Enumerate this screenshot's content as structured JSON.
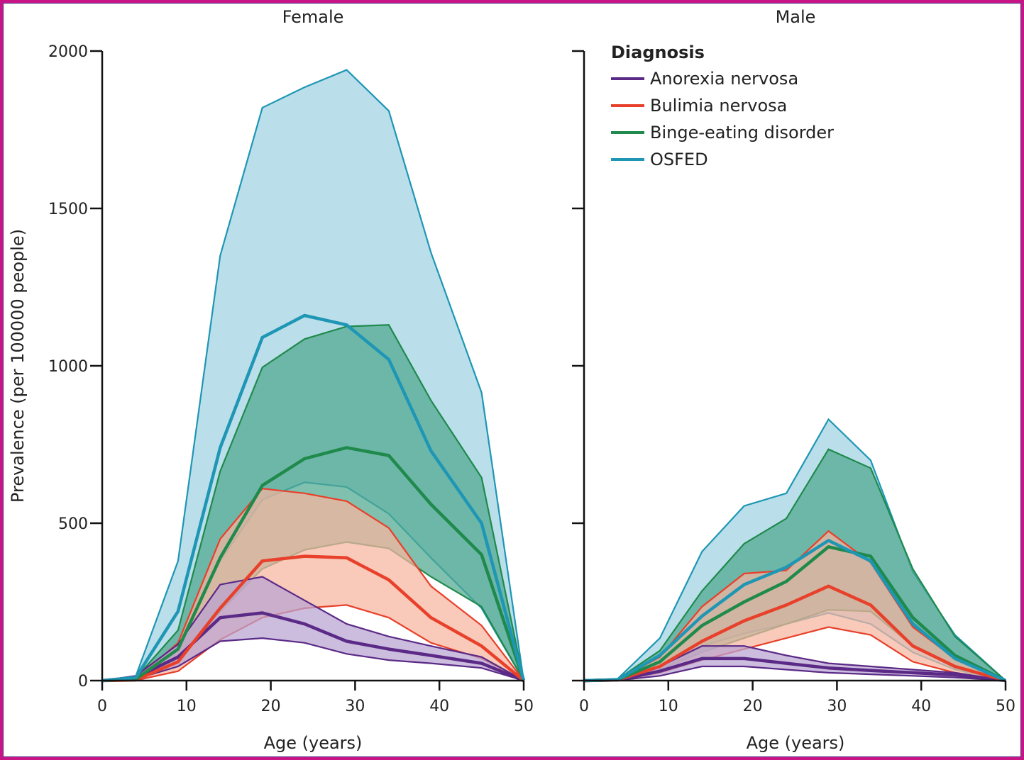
{
  "chart_data": {
    "type": "area",
    "ylabel": "Prevalence (per 100000 people)",
    "xlabel": "Age (years)",
    "xlim": [
      0,
      50
    ],
    "ylim": [
      0,
      2000
    ],
    "xticks": [
      0,
      10,
      20,
      30,
      40,
      50
    ],
    "yticks": [
      0,
      500,
      1000,
      1500,
      2000
    ],
    "grid": false,
    "colors": {
      "Anorexia nervosa": "#5b2a86",
      "Bulimia nervosa": "#e8402a",
      "Binge-eating disorder": "#1f8a4c",
      "OSFED": "#1e96b4"
    },
    "fills": {
      "Anorexia nervosa": "#b9a3d3",
      "Bulimia nervosa": "#f6b49f",
      "Binge-eating disorder": "#4fa88f",
      "OSFED": "#9fd3e3"
    },
    "legend": {
      "title": "Diagnosis",
      "placement": "top-left of Male panel",
      "items": [
        "Anorexia nervosa",
        "Bulimia nervosa",
        "Binge-eating disorder",
        "OSFED"
      ]
    },
    "panels": [
      {
        "title": "Female",
        "series": [
          {
            "name": "OSFED",
            "x": [
              0,
              4,
              9,
              14,
              19,
              24,
              29,
              34,
              39,
              45,
              50
            ],
            "mean": [
              0,
              10,
              220,
              740,
              1090,
              1160,
              1130,
              1020,
              730,
              500,
              0
            ],
            "lower": [
              0,
              5,
              110,
              380,
              575,
              630,
              615,
              530,
              390,
              230,
              0
            ],
            "upper": [
              0,
              15,
              380,
              1350,
              1820,
              1885,
              1940,
              1810,
              1360,
              915,
              0
            ]
          },
          {
            "name": "Binge-eating disorder",
            "x": [
              0,
              4,
              9,
              14,
              19,
              24,
              29,
              34,
              39,
              45,
              50
            ],
            "mean": [
              0,
              5,
              100,
              390,
              620,
              705,
              740,
              715,
              560,
              400,
              0
            ],
            "lower": [
              0,
              2,
              60,
              220,
              355,
              415,
              440,
              420,
              330,
              235,
              0
            ],
            "upper": [
              0,
              8,
              160,
              665,
              995,
              1085,
              1125,
              1130,
              890,
              645,
              0
            ]
          },
          {
            "name": "Bulimia nervosa",
            "x": [
              0,
              4,
              9,
              14,
              19,
              24,
              29,
              34,
              39,
              45,
              50
            ],
            "mean": [
              0,
              2,
              60,
              230,
              380,
              395,
              390,
              320,
              200,
              110,
              0
            ],
            "lower": [
              0,
              1,
              30,
              130,
              200,
              230,
              240,
              200,
              120,
              70,
              0
            ],
            "upper": [
              0,
              4,
              120,
              450,
              610,
              595,
              570,
              485,
              300,
              175,
              0
            ]
          },
          {
            "name": "Anorexia nervosa",
            "x": [
              0,
              4,
              9,
              14,
              19,
              24,
              29,
              34,
              39,
              45,
              50
            ],
            "mean": [
              0,
              10,
              75,
              200,
              215,
              180,
              125,
              100,
              80,
              55,
              0
            ],
            "lower": [
              0,
              5,
              45,
              125,
              135,
              120,
              85,
              65,
              55,
              40,
              0
            ],
            "upper": [
              0,
              15,
              115,
              305,
              330,
              255,
              180,
              140,
              110,
              75,
              0
            ]
          }
        ]
      },
      {
        "title": "Male",
        "series": [
          {
            "name": "OSFED",
            "x": [
              0,
              4,
              9,
              14,
              19,
              24,
              29,
              34,
              39,
              44,
              50
            ],
            "mean": [
              0,
              3,
              80,
              205,
              305,
              360,
              445,
              380,
              180,
              70,
              0
            ],
            "lower": [
              0,
              1,
              45,
              110,
              150,
              180,
              215,
              180,
              90,
              35,
              0
            ],
            "upper": [
              0,
              6,
              135,
              410,
              555,
              595,
              830,
              700,
              345,
              145,
              0
            ]
          },
          {
            "name": "Binge-eating disorder",
            "x": [
              0,
              4,
              9,
              14,
              19,
              24,
              29,
              34,
              39,
              44,
              50
            ],
            "mean": [
              0,
              3,
              60,
              175,
              250,
              315,
              425,
              395,
              200,
              80,
              0
            ],
            "lower": [
              0,
              1,
              35,
              90,
              135,
              180,
              225,
              220,
              110,
              40,
              0
            ],
            "upper": [
              0,
              5,
              95,
              285,
              435,
              515,
              735,
              675,
              355,
              140,
              0
            ]
          },
          {
            "name": "Bulimia nervosa",
            "x": [
              0,
              4,
              9,
              14,
              19,
              24,
              29,
              34,
              39,
              44,
              50
            ],
            "mean": [
              0,
              2,
              45,
              125,
              190,
              240,
              300,
              240,
              110,
              45,
              0
            ],
            "lower": [
              0,
              1,
              25,
              65,
              100,
              135,
              170,
              145,
              60,
              25,
              0
            ],
            "upper": [
              0,
              3,
              75,
              235,
              340,
              350,
              475,
              375,
              170,
              70,
              0
            ]
          },
          {
            "name": "Anorexia nervosa",
            "x": [
              0,
              4,
              9,
              14,
              19,
              24,
              29,
              34,
              39,
              44,
              50
            ],
            "mean": [
              0,
              2,
              30,
              70,
              70,
              55,
              40,
              32,
              25,
              18,
              0
            ],
            "lower": [
              0,
              1,
              15,
              45,
              45,
              35,
              25,
              20,
              15,
              10,
              0
            ],
            "upper": [
              0,
              4,
              45,
              110,
              110,
              80,
              55,
              45,
              35,
              25,
              0
            ]
          }
        ]
      }
    ]
  }
}
